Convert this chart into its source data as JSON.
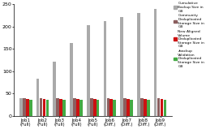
{
  "categories": [
    "Job1\n(Full)",
    "Job2\n(Full)",
    "Job3\n(Full)",
    "Job4\n(Full)",
    "Job5\n(Full)",
    "Job6\n(Diff.)",
    "Job7\n(Diff.)",
    "Job8\n(Diff.)",
    "Job9\n(Diff.)"
  ],
  "cumulative_backup": [
    40,
    83,
    121,
    163,
    204,
    212,
    221,
    231,
    240
  ],
  "community_dedup": [
    40,
    40,
    40,
    40,
    40,
    40,
    40,
    40,
    40
  ],
  "new_aligned_dedup": [
    38,
    38,
    38,
    38,
    38,
    38,
    38,
    38,
    38
  ],
  "zbackup_dedup": [
    37,
    37,
    37,
    37,
    37,
    37,
    37,
    37,
    37
  ],
  "color_cumulative": "#aaaaaa",
  "color_community": "#8b5e5e",
  "color_new_aligned": "#cc1111",
  "color_zbackup": "#44aa44",
  "legend_labels": [
    "Cumulative\nBackup Size in\nGB",
    "Community\nDeduplicated\nStorage Size in\nGB",
    "New Aligned\nVolume\nDeduplicated\nStorage Size in\nGB",
    "zbackup\nValidation\nDeduplicated\nStorage Size in\nGB"
  ],
  "ylim": [
    0,
    250
  ],
  "yticks": [
    0,
    50,
    100,
    150,
    200,
    250
  ],
  "figsize": [
    2.55,
    1.59
  ],
  "dpi": 100
}
